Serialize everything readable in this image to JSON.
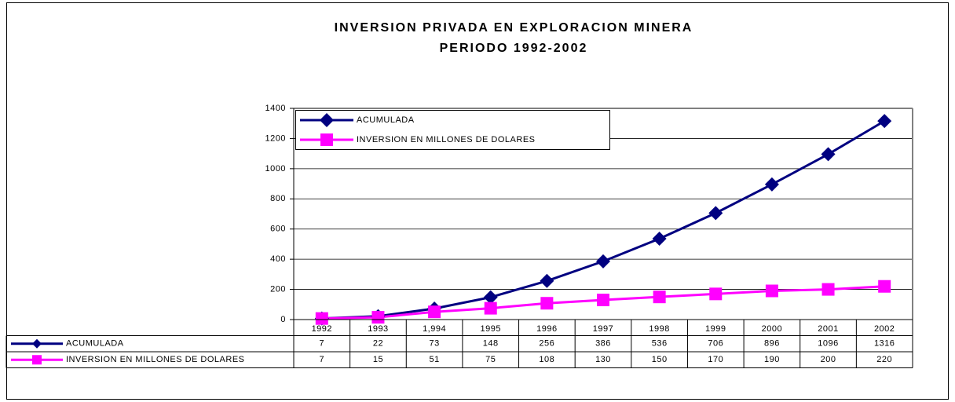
{
  "chart_data": {
    "type": "line",
    "title": "INVERSION PRIVADA EN EXPLORACION MINERA",
    "subtitle": "PERIODO 1992-2002",
    "categories": [
      "1992",
      "1993",
      "1,994",
      "1995",
      "1996",
      "1997",
      "1998",
      "1999",
      "2000",
      "2001",
      "2002"
    ],
    "series": [
      {
        "name": "ACUMULADA",
        "color": "#000080",
        "marker": "diamond",
        "values": [
          7,
          22,
          73,
          148,
          256,
          386,
          536,
          706,
          896,
          1096,
          1316
        ]
      },
      {
        "name": "INVERSION EN MILLONES DE DOLARES",
        "color": "#ff00ff",
        "marker": "square",
        "values": [
          7,
          15,
          51,
          75,
          108,
          130,
          150,
          170,
          190,
          200,
          220
        ]
      }
    ],
    "ylim": [
      0,
      1400
    ],
    "yticks": [
      0,
      200,
      400,
      600,
      800,
      1000,
      1200,
      1400
    ],
    "grid": true,
    "legend": "top-left",
    "data_table": true
  }
}
